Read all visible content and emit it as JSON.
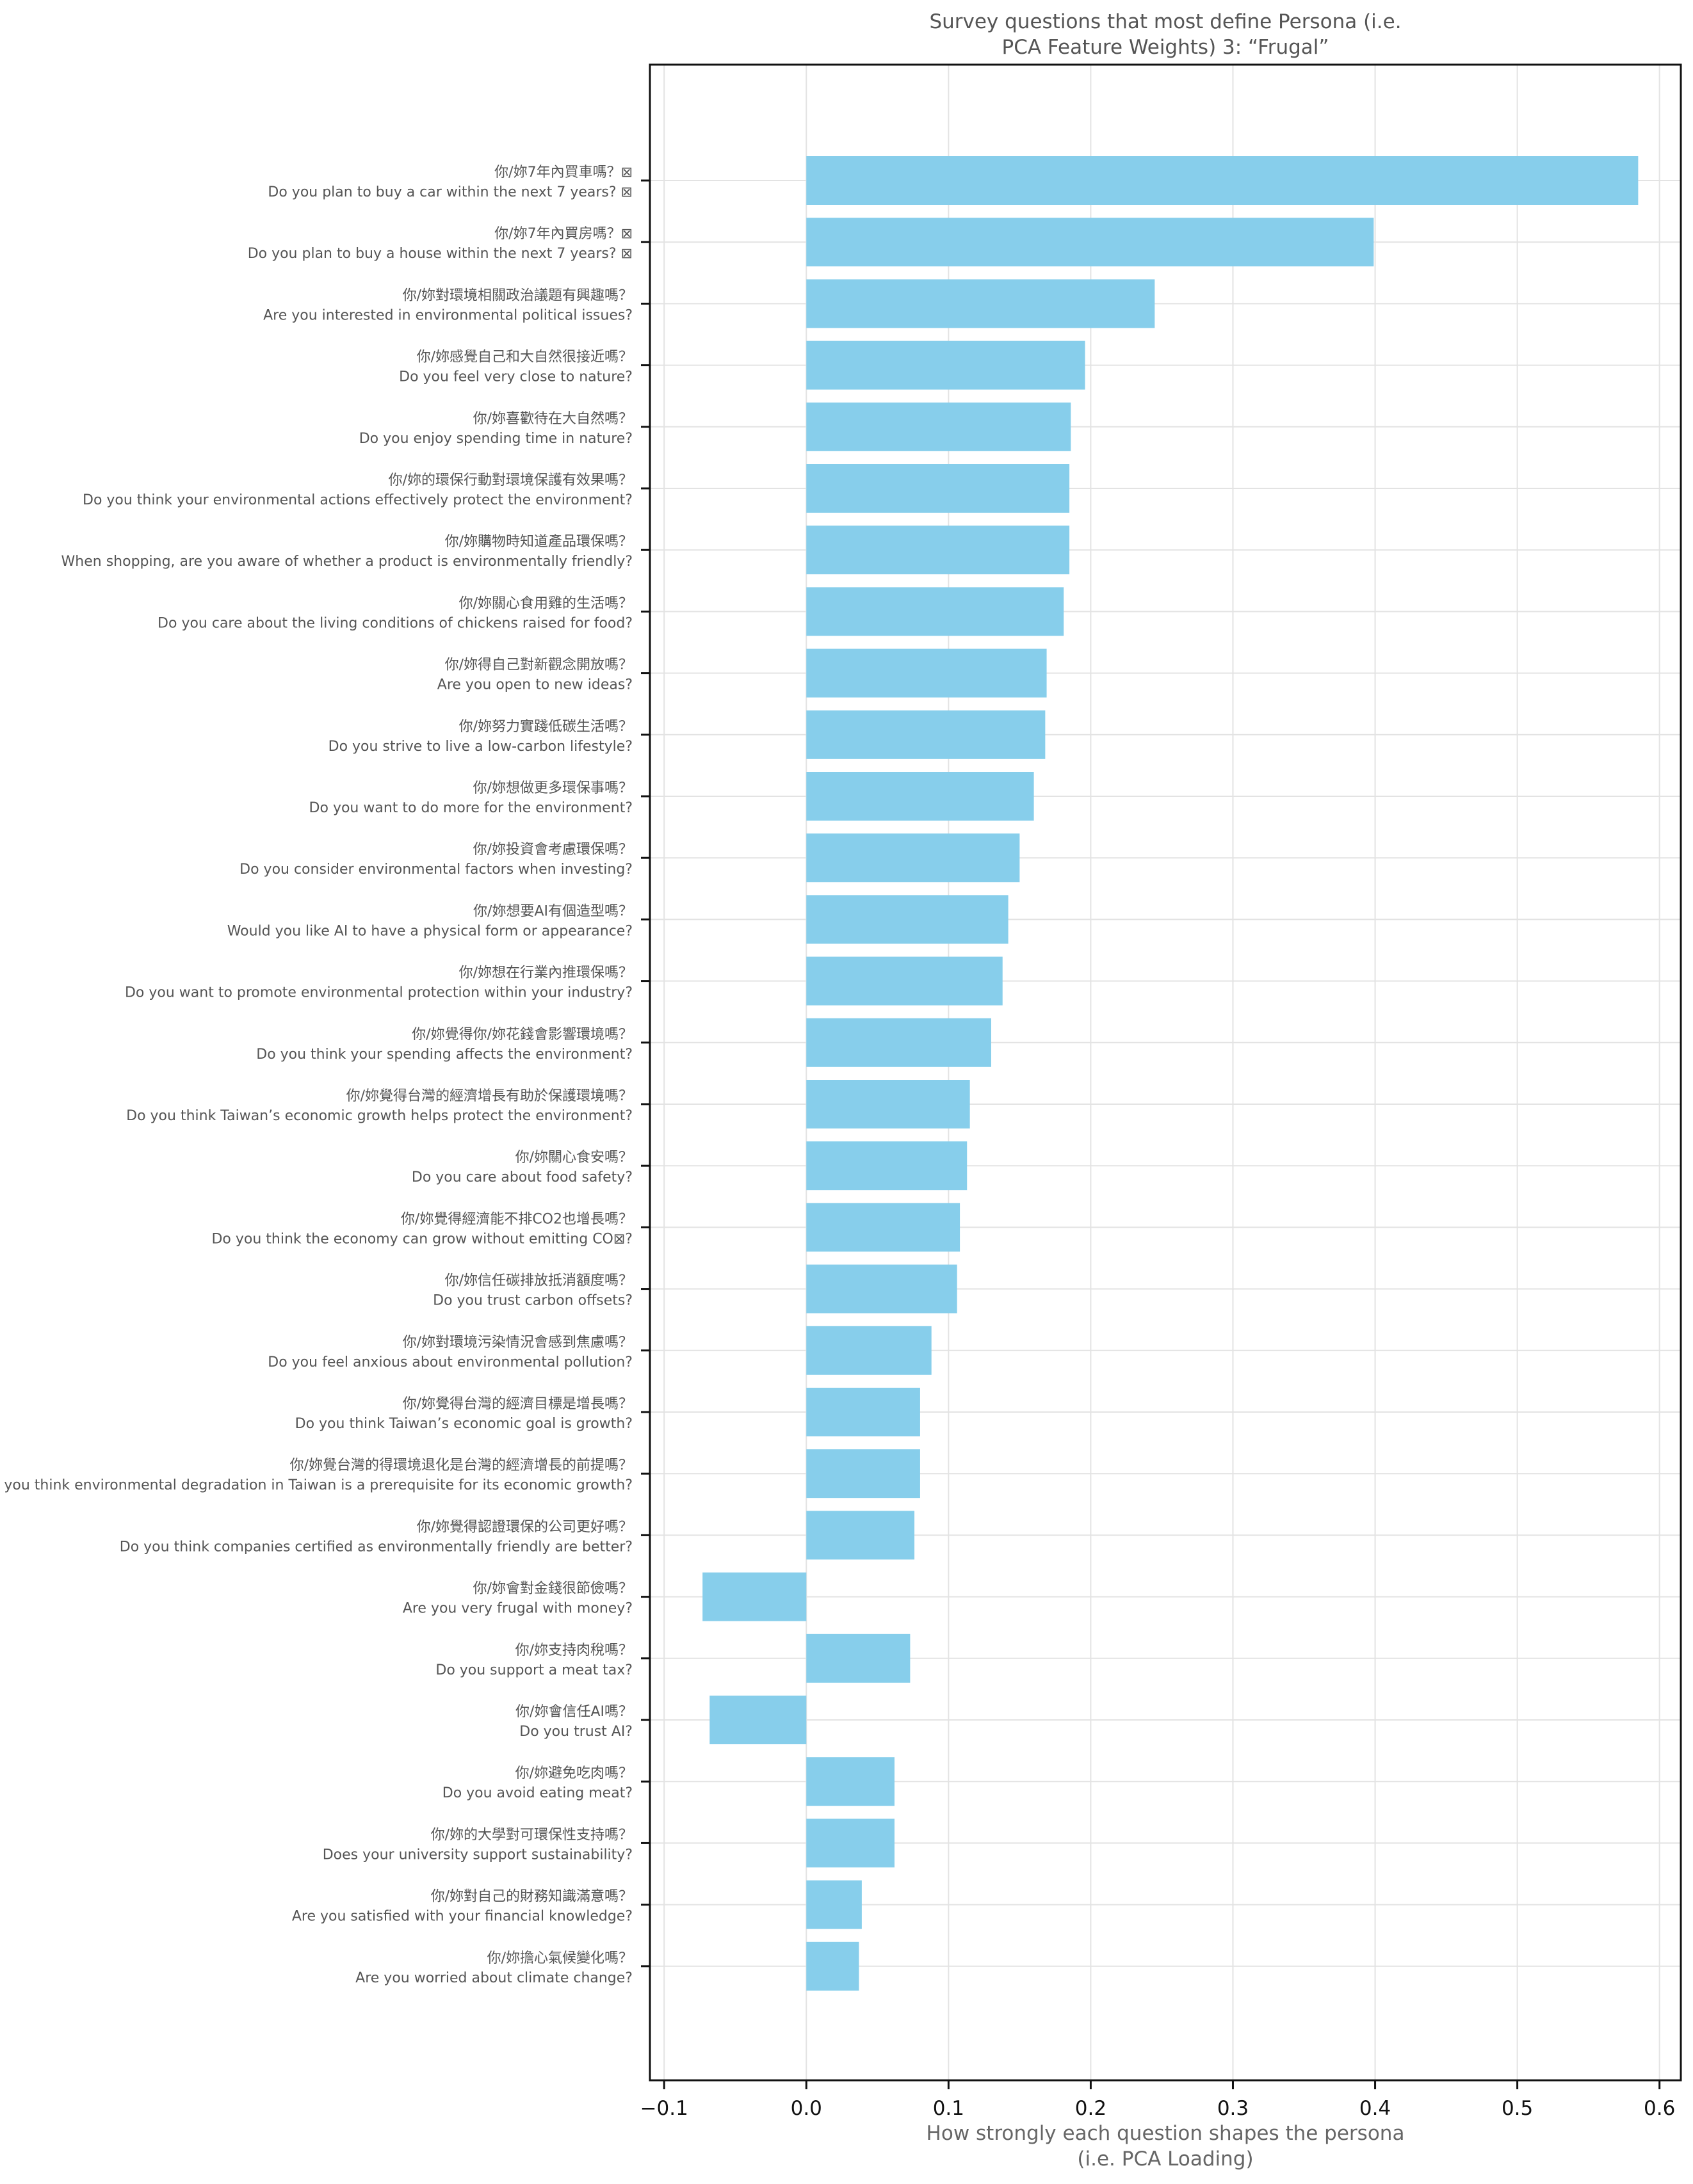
{
  "chart_data": {
    "type": "bar",
    "orientation": "horizontal",
    "title": [
      "Survey questions that most define Persona (i.e.",
      "PCA Feature Weights) 3: “Frugal”"
    ],
    "xlabel": [
      "How strongly each question shapes the persona",
      "(i.e. PCA Loading)"
    ],
    "xlim": [
      -0.11,
      0.615
    ],
    "xticks": [
      -0.1,
      0.0,
      0.1,
      0.2,
      0.3,
      0.4,
      0.5,
      0.6
    ],
    "xtick_labels": [
      "−0.1",
      "0.0",
      "0.1",
      "0.2",
      "0.3",
      "0.4",
      "0.5",
      "0.6"
    ],
    "grid": true,
    "bar_color": "#87CEEB",
    "categories": [
      {
        "zh": "你/妳7年內買車嗎？⊠",
        "en": "Do you plan to buy a car within the next 7 years? ⊠"
      },
      {
        "zh": "你/妳7年內買房嗎？⊠",
        "en": "Do you plan to buy a house within the next 7 years? ⊠"
      },
      {
        "zh": "你/妳對環境相關政治議題有興趣嗎？",
        "en": "Are you interested in environmental political issues?"
      },
      {
        "zh": "你/妳感覺自己和大自然很接近嗎？",
        "en": "Do you feel very close to nature?"
      },
      {
        "zh": "你/妳喜歡待在大自然嗎？",
        "en": "Do you enjoy spending time in nature?"
      },
      {
        "zh": "你/妳的環保行動對環境保護有效果嗎？",
        "en": "Do you think your environmental actions effectively protect the environment?"
      },
      {
        "zh": "你/妳購物時知道產品環保嗎？",
        "en": "When shopping, are you aware of whether a product is environmentally friendly?"
      },
      {
        "zh": "你/妳關心食用雞的生活嗎？",
        "en": "Do you care about the living conditions of chickens raised for food?"
      },
      {
        "zh": "你/妳得自己對新觀念開放嗎？",
        "en": "Are you open to new ideas?"
      },
      {
        "zh": "你/妳努力實踐低碳生活嗎？",
        "en": "Do you strive to live a low-carbon lifestyle?"
      },
      {
        "zh": "你/妳想做更多環保事嗎？",
        "en": "Do you want to do more for the environment?"
      },
      {
        "zh": "你/妳投資會考慮環保嗎？",
        "en": "Do you consider environmental factors when investing?"
      },
      {
        "zh": "你/妳想要AI有個造型嗎？",
        "en": "Would you like AI to have a physical form or appearance?"
      },
      {
        "zh": "你/妳想在行業內推環保嗎？",
        "en": "Do you want to promote environmental protection within your industry?"
      },
      {
        "zh": "你/妳覺得你/妳花錢會影響環境嗎？",
        "en": "Do you think your spending affects the environment?"
      },
      {
        "zh": "你/妳覺得台灣的經濟增長有助於保護環境嗎？",
        "en": "Do you think Taiwan’s economic growth helps protect the environment?"
      },
      {
        "zh": "你/妳關心食安嗎？",
        "en": "Do you care about food safety?"
      },
      {
        "zh": "你/妳覺得經濟能不排CO2也增長嗎？",
        "en": "Do you think the economy can grow without emitting CO⊠?"
      },
      {
        "zh": "你/妳信任碳排放抵消額度嗎？",
        "en": "Do you trust carbon offsets?"
      },
      {
        "zh": "你/妳對環境污染情況會感到焦慮嗎？",
        "en": "Do you feel anxious about environmental pollution?"
      },
      {
        "zh": "你/妳覺得台灣的經濟目標是增長嗎？",
        "en": "Do you think Taiwan’s economic goal is growth?"
      },
      {
        "zh": "你/妳覺台灣的得環境退化是台灣的經濟增長的前提嗎？",
        "en": "Do you think environmental degradation in Taiwan is a prerequisite for its economic growth?"
      },
      {
        "zh": "你/妳覺得認證環保的公司更好嗎？",
        "en": "Do you think companies certified as environmentally friendly are better?"
      },
      {
        "zh": "你/妳會對金錢很節儉嗎？",
        "en": "Are you very frugal with money?"
      },
      {
        "zh": "你/妳支持肉稅嗎？",
        "en": "Do you support a meat tax?"
      },
      {
        "zh": "你/妳會信任AI嗎？",
        "en": "Do you trust AI?"
      },
      {
        "zh": "你/妳避免吃肉嗎？",
        "en": "Do you avoid eating meat?"
      },
      {
        "zh": "你/妳的大學對可環保性支持嗎？",
        "en": "Does your university support sustainability?"
      },
      {
        "zh": "你/妳對自己的財務知識滿意嗎？",
        "en": "Are you satisfied with your financial knowledge?"
      },
      {
        "zh": "你/妳擔心氣候變化嗎？",
        "en": "Are you worried about climate change?"
      }
    ],
    "values": [
      0.585,
      0.399,
      0.245,
      0.196,
      0.186,
      0.185,
      0.185,
      0.181,
      0.169,
      0.168,
      0.16,
      0.15,
      0.142,
      0.138,
      0.13,
      0.115,
      0.113,
      0.108,
      0.106,
      0.088,
      0.08,
      0.08,
      0.076,
      -0.073,
      0.073,
      -0.068,
      0.062,
      0.062,
      0.039,
      0.037
    ]
  }
}
